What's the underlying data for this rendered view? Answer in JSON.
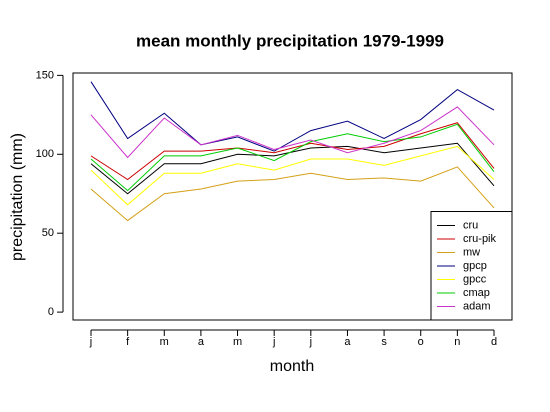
{
  "chart_data": {
    "type": "line",
    "title": "mean monthly precipitation 1979-1999",
    "x_label": "month",
    "y_label": "precipitation (mm)",
    "categories": [
      "j",
      "f",
      "m",
      "a",
      "m",
      "j",
      "j",
      "a",
      "s",
      "o",
      "n",
      "d"
    ],
    "ylim": [
      -5,
      151.5
    ],
    "yticks": [
      0,
      50,
      100,
      150
    ],
    "legend": "bottom-right",
    "series": [
      {
        "name": "cru",
        "color": "#000000",
        "values": [
          94,
          75,
          94,
          94,
          100,
          99,
          104,
          105,
          101,
          104,
          107,
          80
        ]
      },
      {
        "name": "cru-pik",
        "color": "#cc0000",
        "values": [
          99,
          84,
          102,
          102,
          104,
          101,
          107,
          103,
          105,
          113,
          120,
          91
        ]
      },
      {
        "name": "mw",
        "color": "#d4a017",
        "values": [
          78,
          58,
          75,
          78,
          83,
          84,
          88,
          84,
          85,
          83,
          92,
          66
        ]
      },
      {
        "name": "gpcp",
        "color": "#000080",
        "values": [
          146,
          110,
          126,
          106,
          111,
          102,
          115,
          121,
          110,
          122,
          141,
          128
        ]
      },
      {
        "name": "gpcc",
        "color": "#ffff00",
        "values": [
          90,
          68,
          88,
          88,
          94,
          90,
          97,
          97,
          93,
          99,
          105,
          84
        ]
      },
      {
        "name": "cmap",
        "color": "#00cc00",
        "values": [
          97,
          77,
          99,
          99,
          104,
          96,
          108,
          113,
          108,
          111,
          119,
          89
        ]
      },
      {
        "name": "adam",
        "color": "#cc33cc",
        "values": [
          125,
          98,
          123,
          106,
          112,
          103,
          109,
          101,
          107,
          115,
          130,
          106
        ]
      }
    ]
  }
}
